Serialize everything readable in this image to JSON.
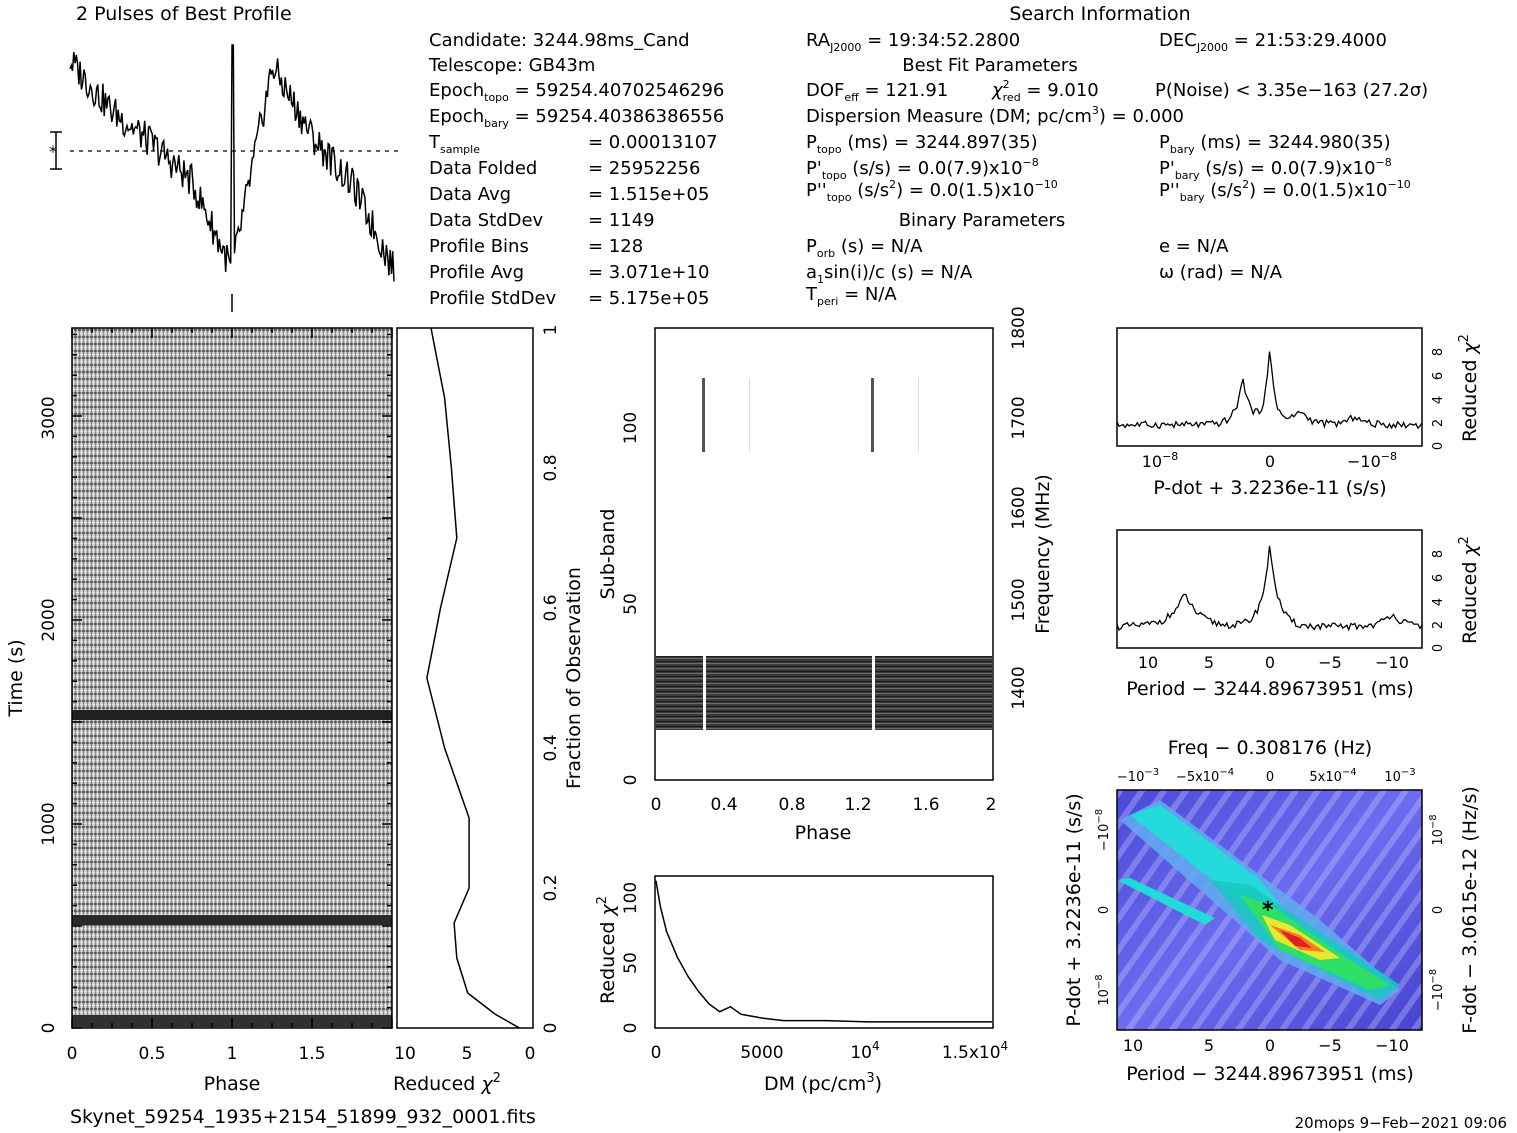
{
  "texts": {
    "profile_title": "2 Pulses of Best Profile",
    "search_title": "Search Information",
    "best_fit_title": "Best Fit Parameters",
    "binary_title": "Binary Parameters",
    "filename": "Skynet_59254_1935+2154_51899_932_0001.fits",
    "footer": "20mops   9−Feb−2021 09:06"
  },
  "info": {
    "candidate": "Candidate:  3244.98ms_Cand",
    "telescope": "Telescope:  GB43m",
    "epoch_topo_label": "Epoch",
    "epoch_topo_sub": "topo",
    "epoch_topo_val": " = 59254.40702546296",
    "epoch_bary_label": "Epoch",
    "epoch_bary_sub": "bary",
    "epoch_bary_val": " = 59254.40386386556",
    "tsample_label": "T",
    "tsample_sub": "sample",
    "tsample_val": "=   0.00013107",
    "data_folded_label": "Data Folded",
    "data_folded_val": "=   25952256",
    "data_avg_label": "Data Avg",
    "data_avg_val": "=   1.515e+05",
    "data_stddev_label": "Data StdDev",
    "data_stddev_val": "=   1149",
    "profile_bins_label": "Profile Bins",
    "profile_bins_val": "=   128",
    "profile_avg_label": "Profile Avg",
    "profile_avg_val": "=   3.071e+10",
    "profile_stddev_label": "Profile StdDev",
    "profile_stddev_val": "=   5.175e+05"
  },
  "search": {
    "ra_label": "RA",
    "ra_sub": "J2000",
    "ra_val": " = 19:34:52.2800",
    "dec_label": "DEC",
    "dec_sub": "J2000",
    "dec_val": " = 21:53:29.4000",
    "dof_label": "DOF",
    "dof_sub": "eff",
    "dof_val": " = 121.91",
    "chi_sub": "red",
    "chi_val": " = 9.010",
    "pnoise": "P(Noise) < 3.35e−163   (27.2σ)",
    "dm_a": "Dispersion Measure (DM; pc/cm",
    "dm_sup": "3",
    "dm_b": ") = 0.000",
    "ptopo_label": "P",
    "ptopo_sub": "topo",
    "ptopo_val": " (ms) =  3244.897(35)",
    "pbary_label": "P",
    "pbary_sub": "bary",
    "pbary_val": " (ms) =  3244.980(35)",
    "pdtopo_label": "P'",
    "pdtopo_sub": "topo",
    "pdtopo_val": " (s/s) = 0.0(7.9)x10",
    "pdtopo_exp": "−8",
    "pdbary_label": "P'",
    "pdbary_sub": "bary",
    "pdbary_val": " (s/s) = 0.0(7.9)x10",
    "pdbary_exp": "−8",
    "pddtopo_label": "P''",
    "pddtopo_sub": "topo",
    "pddtopo_val": " (s/s",
    "pddtopo_sup": "2",
    "pddtopo_val2": ") = 0.0(1.5)x10",
    "pddtopo_exp": "−10",
    "pddbary_label": "P''",
    "pddbary_sub": "bary",
    "pddbary_val": " (s/s",
    "pddbary_sup": "2",
    "pddbary_val2": ") = 0.0(1.5)x10",
    "pddbary_exp": "−10",
    "porb_label": "P",
    "porb_sub": "orb",
    "porb_val": " (s) = N/A",
    "e_val": "e = N/A",
    "a1_a": "a",
    "a1_sub": "1",
    "a1_b": "sin(i)/c (s) = N/A",
    "omega_val": "ω (rad) = N/A",
    "tperi_label": "T",
    "tperi_sub": "peri",
    "tperi_val": " = N/A"
  },
  "chart_data": [
    {
      "type": "line",
      "title": "2 Pulses of Best Profile",
      "description_shown": "pulse profile repeated over two rotations",
      "x": [
        0,
        0.25,
        0.5,
        0.75,
        1.0,
        1.25,
        1.5,
        1.75,
        2.0
      ],
      "values": [
        0.92,
        0.72,
        0.58,
        0.42,
        0.05,
        0.9,
        0.6,
        0.4,
        0.05
      ],
      "errorbar": "yes",
      "ylabel": "",
      "xlabel": ""
    },
    {
      "type": "heatmap",
      "xlabel": "Phase",
      "ylabel": "Time (s)",
      "xticks": [
        "0",
        "0.5",
        "1",
        "1.5"
      ],
      "yticks": [
        "0",
        "1000",
        "2000",
        "3000"
      ],
      "xlim": [
        0,
        2
      ],
      "ylim": [
        0,
        3400
      ]
    },
    {
      "type": "line",
      "xlabel": "Reduced χ2",
      "ylabel": "Fraction of Observation",
      "xticks": [
        "10",
        "5",
        "0"
      ],
      "yticks": [
        "0",
        "0.2",
        "0.4",
        "0.6",
        "0.8",
        "1"
      ],
      "xlim": [
        10,
        0
      ],
      "ylim": [
        0,
        1
      ],
      "series": [
        {
          "y": [
            0,
            0.02,
            0.05,
            0.1,
            0.15,
            0.2,
            0.3,
            0.4,
            0.5,
            0.6,
            0.7,
            0.8,
            0.9,
            1.0
          ],
          "x": [
            1.0,
            2.8,
            4.8,
            5.6,
            5.8,
            4.7,
            4.7,
            6.5,
            7.8,
            6.8,
            5.6,
            6.0,
            6.5,
            7.5
          ]
        }
      ]
    },
    {
      "type": "heatmap",
      "xlabel": "Phase",
      "ylabel": "Sub-band",
      "y2label": "Frequency (MHz)",
      "xticks": [
        "0",
        "0.4",
        "0.8",
        "1.2",
        "1.6",
        "2"
      ],
      "yticks": [
        "0",
        "50",
        "100"
      ],
      "y2ticks": [
        "1400",
        "1500",
        "1600",
        "1700",
        "1800"
      ],
      "xlim": [
        0,
        2
      ],
      "ylim": [
        0,
        128
      ]
    },
    {
      "type": "line",
      "xlabel": "DM (pc/cm3)",
      "ylabel": "Reduced χ2",
      "xticks": [
        "0",
        "5000",
        "10^4",
        "1.5x10^4"
      ],
      "yticks": [
        "0",
        "50",
        "100"
      ],
      "xlim": [
        0,
        15800
      ],
      "ylim": [
        0,
        118
      ],
      "series": [
        {
          "x": [
            0,
            200,
            500,
            1000,
            1500,
            2000,
            2500,
            3000,
            3500,
            4000,
            5000,
            6000,
            8000,
            10000,
            12000,
            15000,
            15800
          ],
          "y": [
            115,
            95,
            75,
            55,
            40,
            28,
            18,
            12,
            16,
            10,
            7,
            5,
            5,
            4,
            4,
            4,
            4
          ]
        }
      ]
    },
    {
      "type": "line",
      "xlabel": "P-dot + 3.2236e-11 (s/s)",
      "ylabel": "Reduced χ2",
      "xticks": [
        "10^-8",
        "0",
        "-10^-8"
      ],
      "yticks": [
        "0",
        "2",
        "4",
        "6",
        "8"
      ],
      "ylim": [
        0,
        10
      ]
    },
    {
      "type": "line",
      "xlabel": "Period − 3244.89673951 (ms)",
      "ylabel": "Reduced χ2",
      "xticks": [
        "10",
        "5",
        "0",
        "−5",
        "−10"
      ],
      "yticks": [
        "0",
        "2",
        "4",
        "6",
        "8"
      ],
      "ylim": [
        0,
        10
      ]
    },
    {
      "type": "heatmap",
      "title": "Freq − 0.308176 (Hz)",
      "xlabel": "Period − 3244.89673951 (ms)",
      "ylabel": "P-dot + 3.2236e-11 (s/s)",
      "y2label": "F-dot − 3.0615e-12 (Hz/s)",
      "xticks": [
        "10",
        "5",
        "0",
        "−5",
        "−10"
      ],
      "x2ticks": [
        "−10^-3",
        "−5x10^-4",
        "0",
        "5x10^-4",
        "10^-3"
      ],
      "yticks": [
        "10^-8",
        "0",
        "−10^-8"
      ],
      "y2ticks": [
        "10^-8",
        "0",
        "−10^-8"
      ]
    }
  ]
}
